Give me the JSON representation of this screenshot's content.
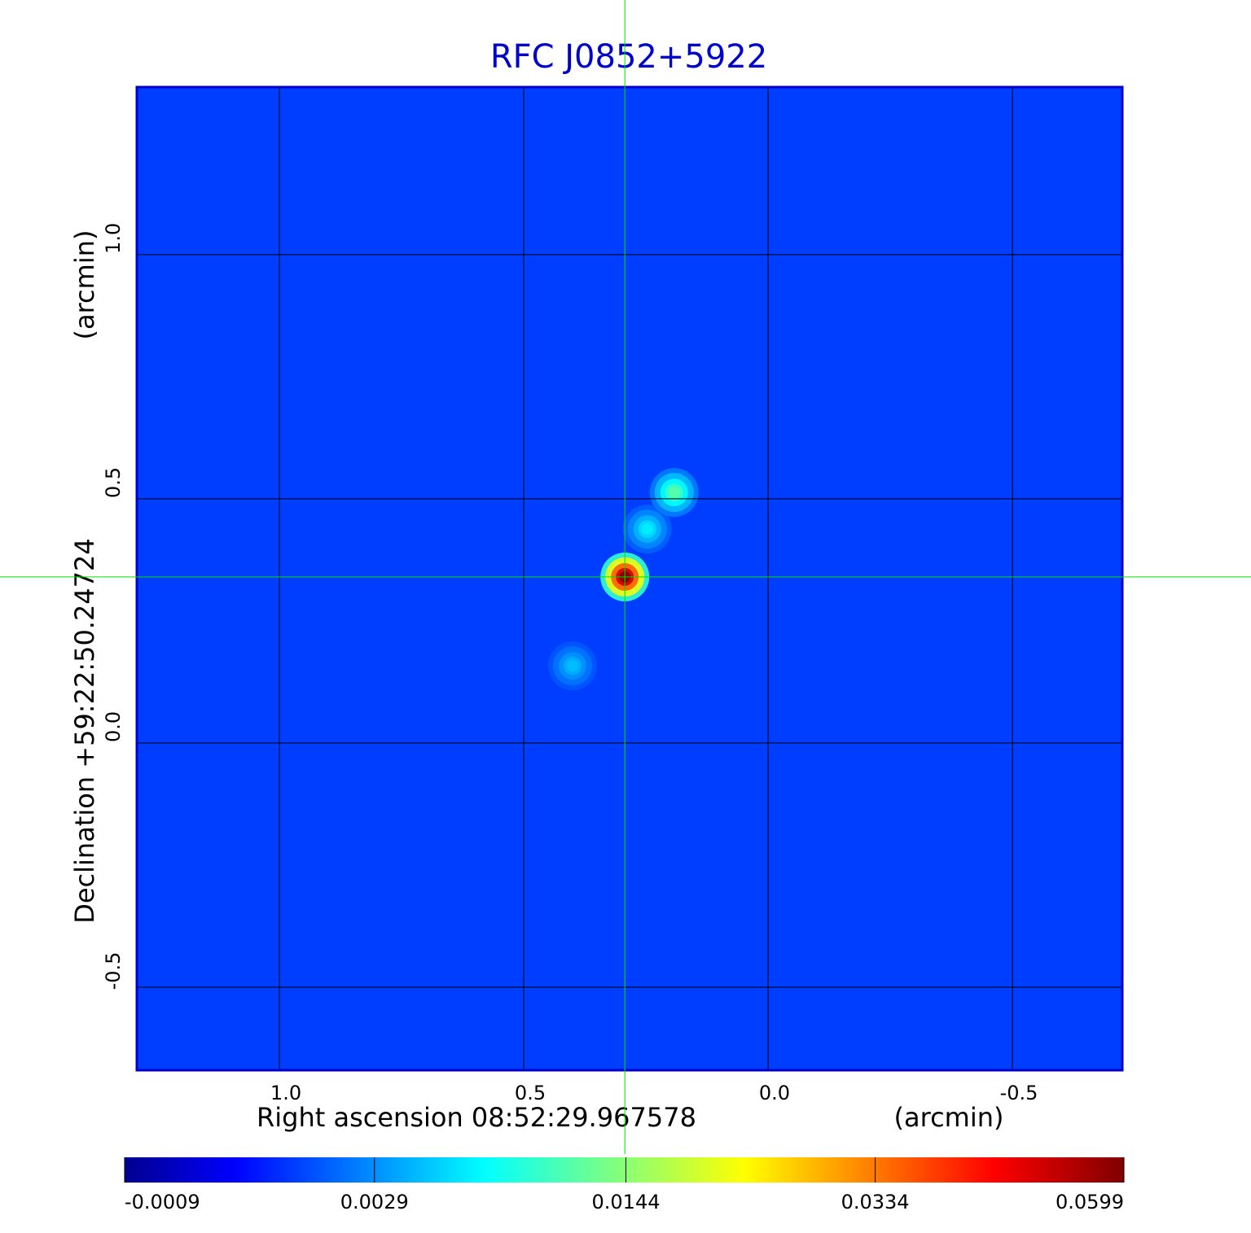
{
  "chart_data": {
    "type": "image",
    "title": "RFC J0852+5922",
    "x_label": "Right ascension  08:52:29.967578",
    "x_unit": "(arcmin)",
    "y_label": "Declination  +59:22:50.24724",
    "y_unit": "(arcmin)",
    "xlim": [
      1.2917,
      -0.725
    ],
    "ylim": [
      -0.67,
      1.343
    ],
    "xticks": [
      {
        "value": 1,
        "label": "1.0"
      },
      0.5,
      {
        "value": 0,
        "label": "0.0"
      },
      -0.5
    ],
    "yticks": [
      {
        "value": 1,
        "label": "1.0"
      },
      0.5,
      {
        "value": 0,
        "label": "0.0"
      },
      -0.5
    ],
    "grid": true,
    "crosshair": {
      "x": 0.293,
      "y": 0.34,
      "color": "#00e000"
    },
    "background_value": 0.0012,
    "sources": {
      "x": [
        0.293,
        0.247,
        0.192,
        0.4
      ],
      "y": [
        0.34,
        0.438,
        0.513,
        0.158
      ],
      "values": [
        0.0599,
        0.007,
        0.012,
        0.005
      ]
    },
    "colorbar": {
      "scale": "sqrt",
      "lim": [
        -0.0009,
        0.0599
      ],
      "ticks": [
        -0.0009,
        0.0029,
        0.0144,
        0.0334,
        0.0599
      ]
    }
  }
}
